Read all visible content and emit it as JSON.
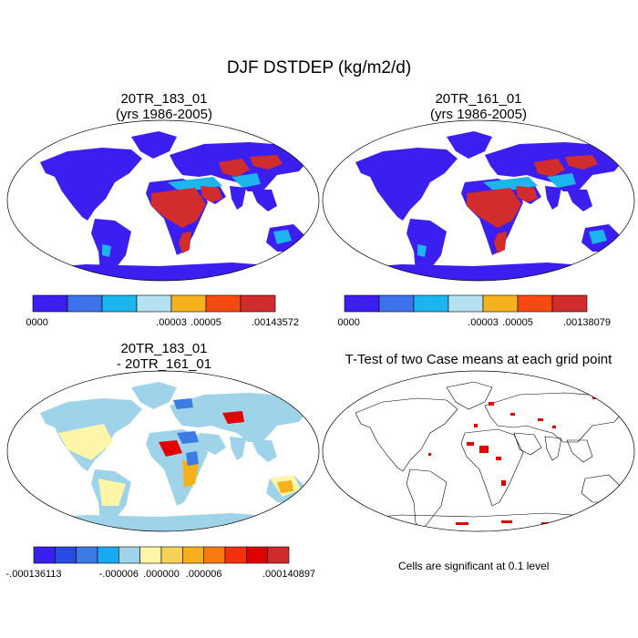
{
  "title": "DJF DSTDEP (kg/m2/d)",
  "panels": [
    {
      "id": "case1",
      "title_line1": "20TR_183_01",
      "title_line2": "(yrs 1986-2005)",
      "colorbar": {
        "colors": [
          "#3b1ef0",
          "#3c73eb",
          "#1cb5f0",
          "#b5e2f2",
          "#f5b21c",
          "#f54a10",
          "#d22d2d"
        ],
        "labels": [
          ".00000",
          ".00003",
          ".00005",
          ".00143572"
        ]
      }
    },
    {
      "id": "case2",
      "title_line1": "20TR_161_01",
      "title_line2": "(yrs 1986-2005)",
      "colorbar": {
        "colors": [
          "#3b1ef0",
          "#3c73eb",
          "#1cb5f0",
          "#b5e2f2",
          "#f5b21c",
          "#f54a10",
          "#d22d2d"
        ],
        "labels": [
          ".00000",
          ".00003",
          ".00005",
          ".00138079"
        ]
      }
    },
    {
      "id": "diff",
      "title_line1": "20TR_183_01",
      "title_line2": "- 20TR_161_01",
      "colorbar": {
        "colors": [
          "#3a20f0",
          "#2a4ae8",
          "#3c7ae6",
          "#1aa8f0",
          "#9fd3ea",
          "#fef5a8",
          "#f6d25a",
          "#f5b01c",
          "#f57a10",
          "#f53010",
          "#e00000",
          "#d02a2a"
        ],
        "labels": [
          "-.000136113",
          "-.000006",
          ".000000",
          ".000006",
          ".000140897"
        ]
      }
    },
    {
      "id": "ttest",
      "title_line1": "T-Test of two Case means at each grid point",
      "note": "Cells are significant at 0.1 level"
    }
  ],
  "chart_data": [
    {
      "type": "heatmap",
      "title": "20TR_183_01 (yrs 1986-2005)",
      "variable": "DJF DSTDEP",
      "units": "kg/m2/d",
      "projection": "Robinson",
      "levels": [
        0,
        3e-05,
        5e-05,
        0.00143572
      ]
    },
    {
      "type": "heatmap",
      "title": "20TR_161_01 (yrs 1986-2005)",
      "variable": "DJF DSTDEP",
      "units": "kg/m2/d",
      "projection": "Robinson",
      "levels": [
        0,
        3e-05,
        5e-05,
        0.00138079
      ]
    },
    {
      "type": "heatmap",
      "title": "20TR_183_01 - 20TR_161_01",
      "variable": "DJF DSTDEP difference",
      "units": "kg/m2/d",
      "projection": "Robinson",
      "levels": [
        -0.000136113,
        -6e-06,
        0,
        6e-06,
        0.000140897
      ]
    },
    {
      "type": "heatmap",
      "title": "T-Test of two Case means at each grid point",
      "significance_level": 0.1
    }
  ]
}
